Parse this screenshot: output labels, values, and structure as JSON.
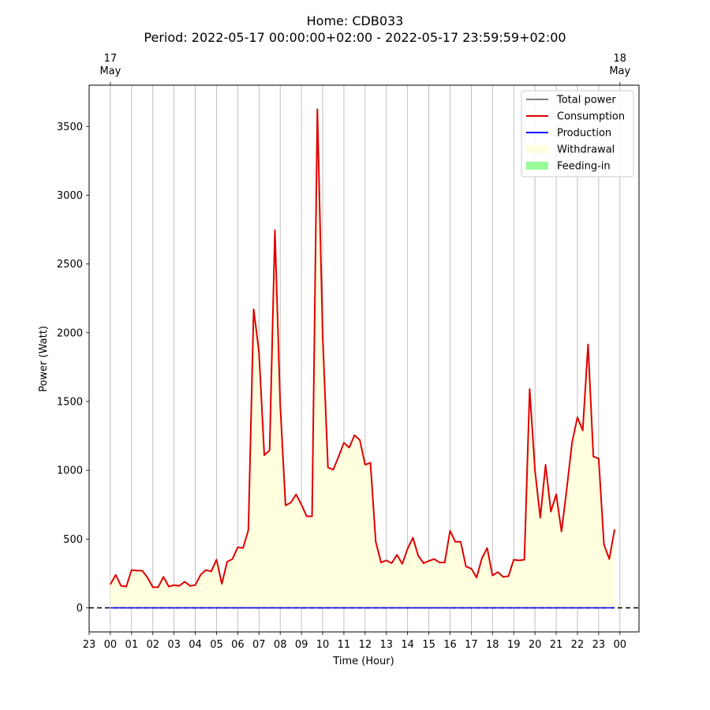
{
  "chart_data": {
    "type": "line",
    "title": "Home: CDB033",
    "subtitle": "Period: 2022-05-17 00:00:00+02:00 - 2022-05-17 23:59:59+02:00",
    "xlabel": "Time (Hour)",
    "ylabel": "Power (Watt)",
    "xlim": [
      -1,
      24.9
    ],
    "ylim": [
      -175,
      3800
    ],
    "x_ticks": [
      {
        "x": -1,
        "label": "23"
      },
      {
        "x": 0,
        "label": "00"
      },
      {
        "x": 1,
        "label": "01"
      },
      {
        "x": 2,
        "label": "02"
      },
      {
        "x": 3,
        "label": "03"
      },
      {
        "x": 4,
        "label": "04"
      },
      {
        "x": 5,
        "label": "05"
      },
      {
        "x": 6,
        "label": "06"
      },
      {
        "x": 7,
        "label": "07"
      },
      {
        "x": 8,
        "label": "08"
      },
      {
        "x": 9,
        "label": "09"
      },
      {
        "x": 10,
        "label": "10"
      },
      {
        "x": 11,
        "label": "11"
      },
      {
        "x": 12,
        "label": "12"
      },
      {
        "x": 13,
        "label": "13"
      },
      {
        "x": 14,
        "label": "14"
      },
      {
        "x": 15,
        "label": "15"
      },
      {
        "x": 16,
        "label": "16"
      },
      {
        "x": 17,
        "label": "17"
      },
      {
        "x": 18,
        "label": "18"
      },
      {
        "x": 19,
        "label": "19"
      },
      {
        "x": 20,
        "label": "20"
      },
      {
        "x": 21,
        "label": "21"
      },
      {
        "x": 22,
        "label": "22"
      },
      {
        "x": 23,
        "label": "23"
      },
      {
        "x": 24,
        "label": "00"
      }
    ],
    "y_ticks": [
      0,
      500,
      1000,
      1500,
      2000,
      2500,
      3000,
      3500
    ],
    "top_ticks": [
      {
        "x": 0,
        "line1": "17",
        "line2": "May"
      },
      {
        "x": 24,
        "line1": "18",
        "line2": "May"
      }
    ],
    "grid": "vertical",
    "zero_line": true,
    "legend_position": "top-right",
    "legend": [
      {
        "label": "Total power",
        "kind": "line",
        "color": "#808080"
      },
      {
        "label": "Consumption",
        "kind": "line",
        "color": "#e00000"
      },
      {
        "label": "Production",
        "kind": "line",
        "color": "#0000ff"
      },
      {
        "label": "Withdrawal",
        "kind": "patch",
        "color": "#ffffe0"
      },
      {
        "label": "Feeding-in",
        "kind": "patch",
        "color": "#98fb98"
      }
    ],
    "x_step_hours": 0.25,
    "series": [
      {
        "name": "Consumption",
        "color": "#e00000",
        "values": [
          170,
          240,
          160,
          155,
          275,
          270,
          270,
          220,
          150,
          150,
          225,
          155,
          165,
          160,
          190,
          160,
          165,
          240,
          275,
          265,
          350,
          175,
          335,
          355,
          440,
          435,
          565,
          2170,
          1860,
          1110,
          1145,
          2745,
          1480,
          745,
          765,
          825,
          750,
          665,
          665,
          3625,
          1980,
          1020,
          1005,
          1100,
          1200,
          1165,
          1255,
          1220,
          1040,
          1055,
          480,
          330,
          345,
          325,
          385,
          320,
          430,
          510,
          380,
          325,
          340,
          355,
          330,
          330,
          560,
          480,
          480,
          300,
          285,
          220,
          360,
          435,
          235,
          260,
          225,
          230,
          350,
          345,
          350,
          1590,
          1000,
          655,
          1040,
          700,
          825,
          555,
          870,
          1205,
          1385,
          1290,
          1915,
          1100,
          1085,
          460,
          355,
          570
        ]
      },
      {
        "name": "Production",
        "color": "#0000ff",
        "constant": 0
      }
    ]
  }
}
